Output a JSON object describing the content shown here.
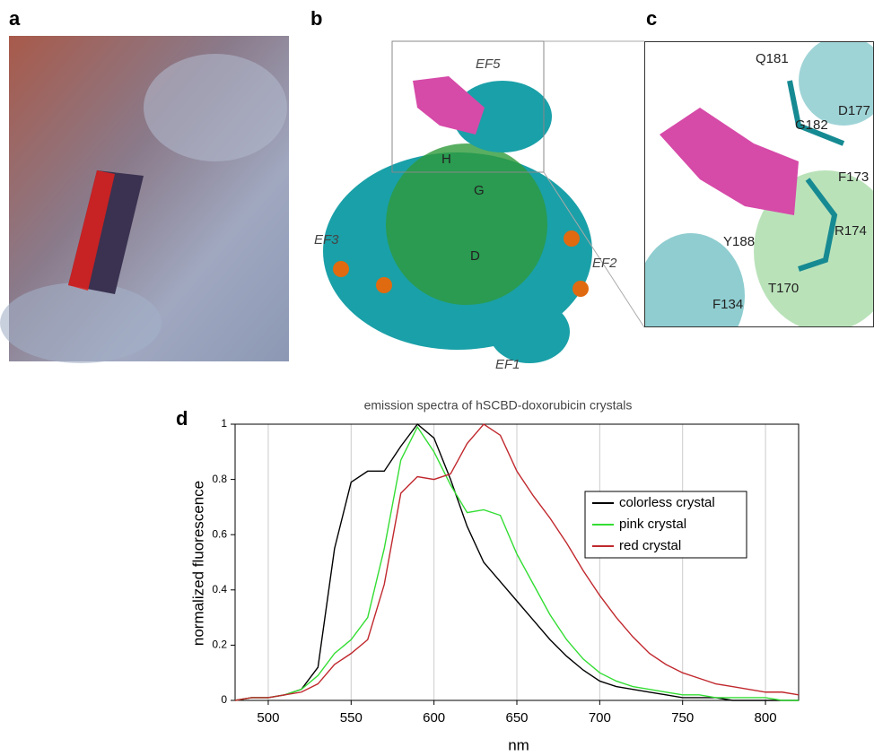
{
  "panels": {
    "a": {
      "label": "a"
    },
    "b": {
      "label": "b",
      "annotations": [
        "EF5",
        "H",
        "G",
        "EF3",
        "D",
        "EF2",
        "EF1"
      ]
    },
    "c": {
      "label": "c",
      "annotations": [
        "Q181",
        "G182",
        "D177",
        "F173",
        "R174",
        "Y188",
        "T170",
        "F134"
      ]
    },
    "d": {
      "label": "d"
    }
  },
  "chart_data": {
    "type": "line",
    "title": "emission spectra of hSCBD-doxorubicin crystals",
    "x_label": "nm",
    "y_label": "normalized fluorescence",
    "x": [
      480,
      490,
      500,
      510,
      520,
      530,
      540,
      550,
      560,
      570,
      580,
      590,
      600,
      610,
      620,
      630,
      640,
      650,
      660,
      670,
      680,
      690,
      700,
      710,
      720,
      730,
      740,
      750,
      760,
      770,
      780,
      790,
      800,
      810,
      820
    ],
    "series": [
      {
        "name": "colorless crystal",
        "color": "#000000",
        "values": [
          0,
          0.01,
          0.01,
          0.02,
          0.04,
          0.12,
          0.55,
          0.79,
          0.83,
          0.83,
          0.92,
          1.0,
          0.95,
          0.8,
          0.63,
          0.5,
          0.43,
          0.36,
          0.29,
          0.22,
          0.16,
          0.11,
          0.07,
          0.05,
          0.04,
          0.03,
          0.02,
          0.01,
          0.01,
          0.01,
          0,
          0,
          0,
          0,
          0
        ]
      },
      {
        "name": "pink crystal",
        "color": "#33dd33",
        "values": [
          0,
          0.01,
          0.01,
          0.02,
          0.04,
          0.09,
          0.17,
          0.22,
          0.3,
          0.55,
          0.87,
          0.99,
          0.9,
          0.78,
          0.68,
          0.69,
          0.67,
          0.53,
          0.42,
          0.31,
          0.22,
          0.15,
          0.1,
          0.07,
          0.05,
          0.04,
          0.03,
          0.02,
          0.02,
          0.01,
          0.01,
          0.01,
          0.01,
          0,
          0
        ]
      },
      {
        "name": "red crystal",
        "color": "#c0282d",
        "values": [
          0,
          0.01,
          0.01,
          0.02,
          0.03,
          0.06,
          0.13,
          0.17,
          0.22,
          0.42,
          0.75,
          0.81,
          0.8,
          0.82,
          0.93,
          1.0,
          0.96,
          0.83,
          0.74,
          0.66,
          0.57,
          0.47,
          0.38,
          0.3,
          0.23,
          0.17,
          0.13,
          0.1,
          0.08,
          0.06,
          0.05,
          0.04,
          0.03,
          0.03,
          0.02
        ]
      }
    ],
    "xlim": [
      480,
      820
    ],
    "xticks": [
      500,
      550,
      600,
      650,
      700,
      750,
      800
    ],
    "ylim": [
      0,
      1
    ],
    "yticks": [
      0,
      0.2,
      0.4,
      0.6,
      0.8,
      1
    ],
    "grid": true,
    "legend": "right"
  }
}
